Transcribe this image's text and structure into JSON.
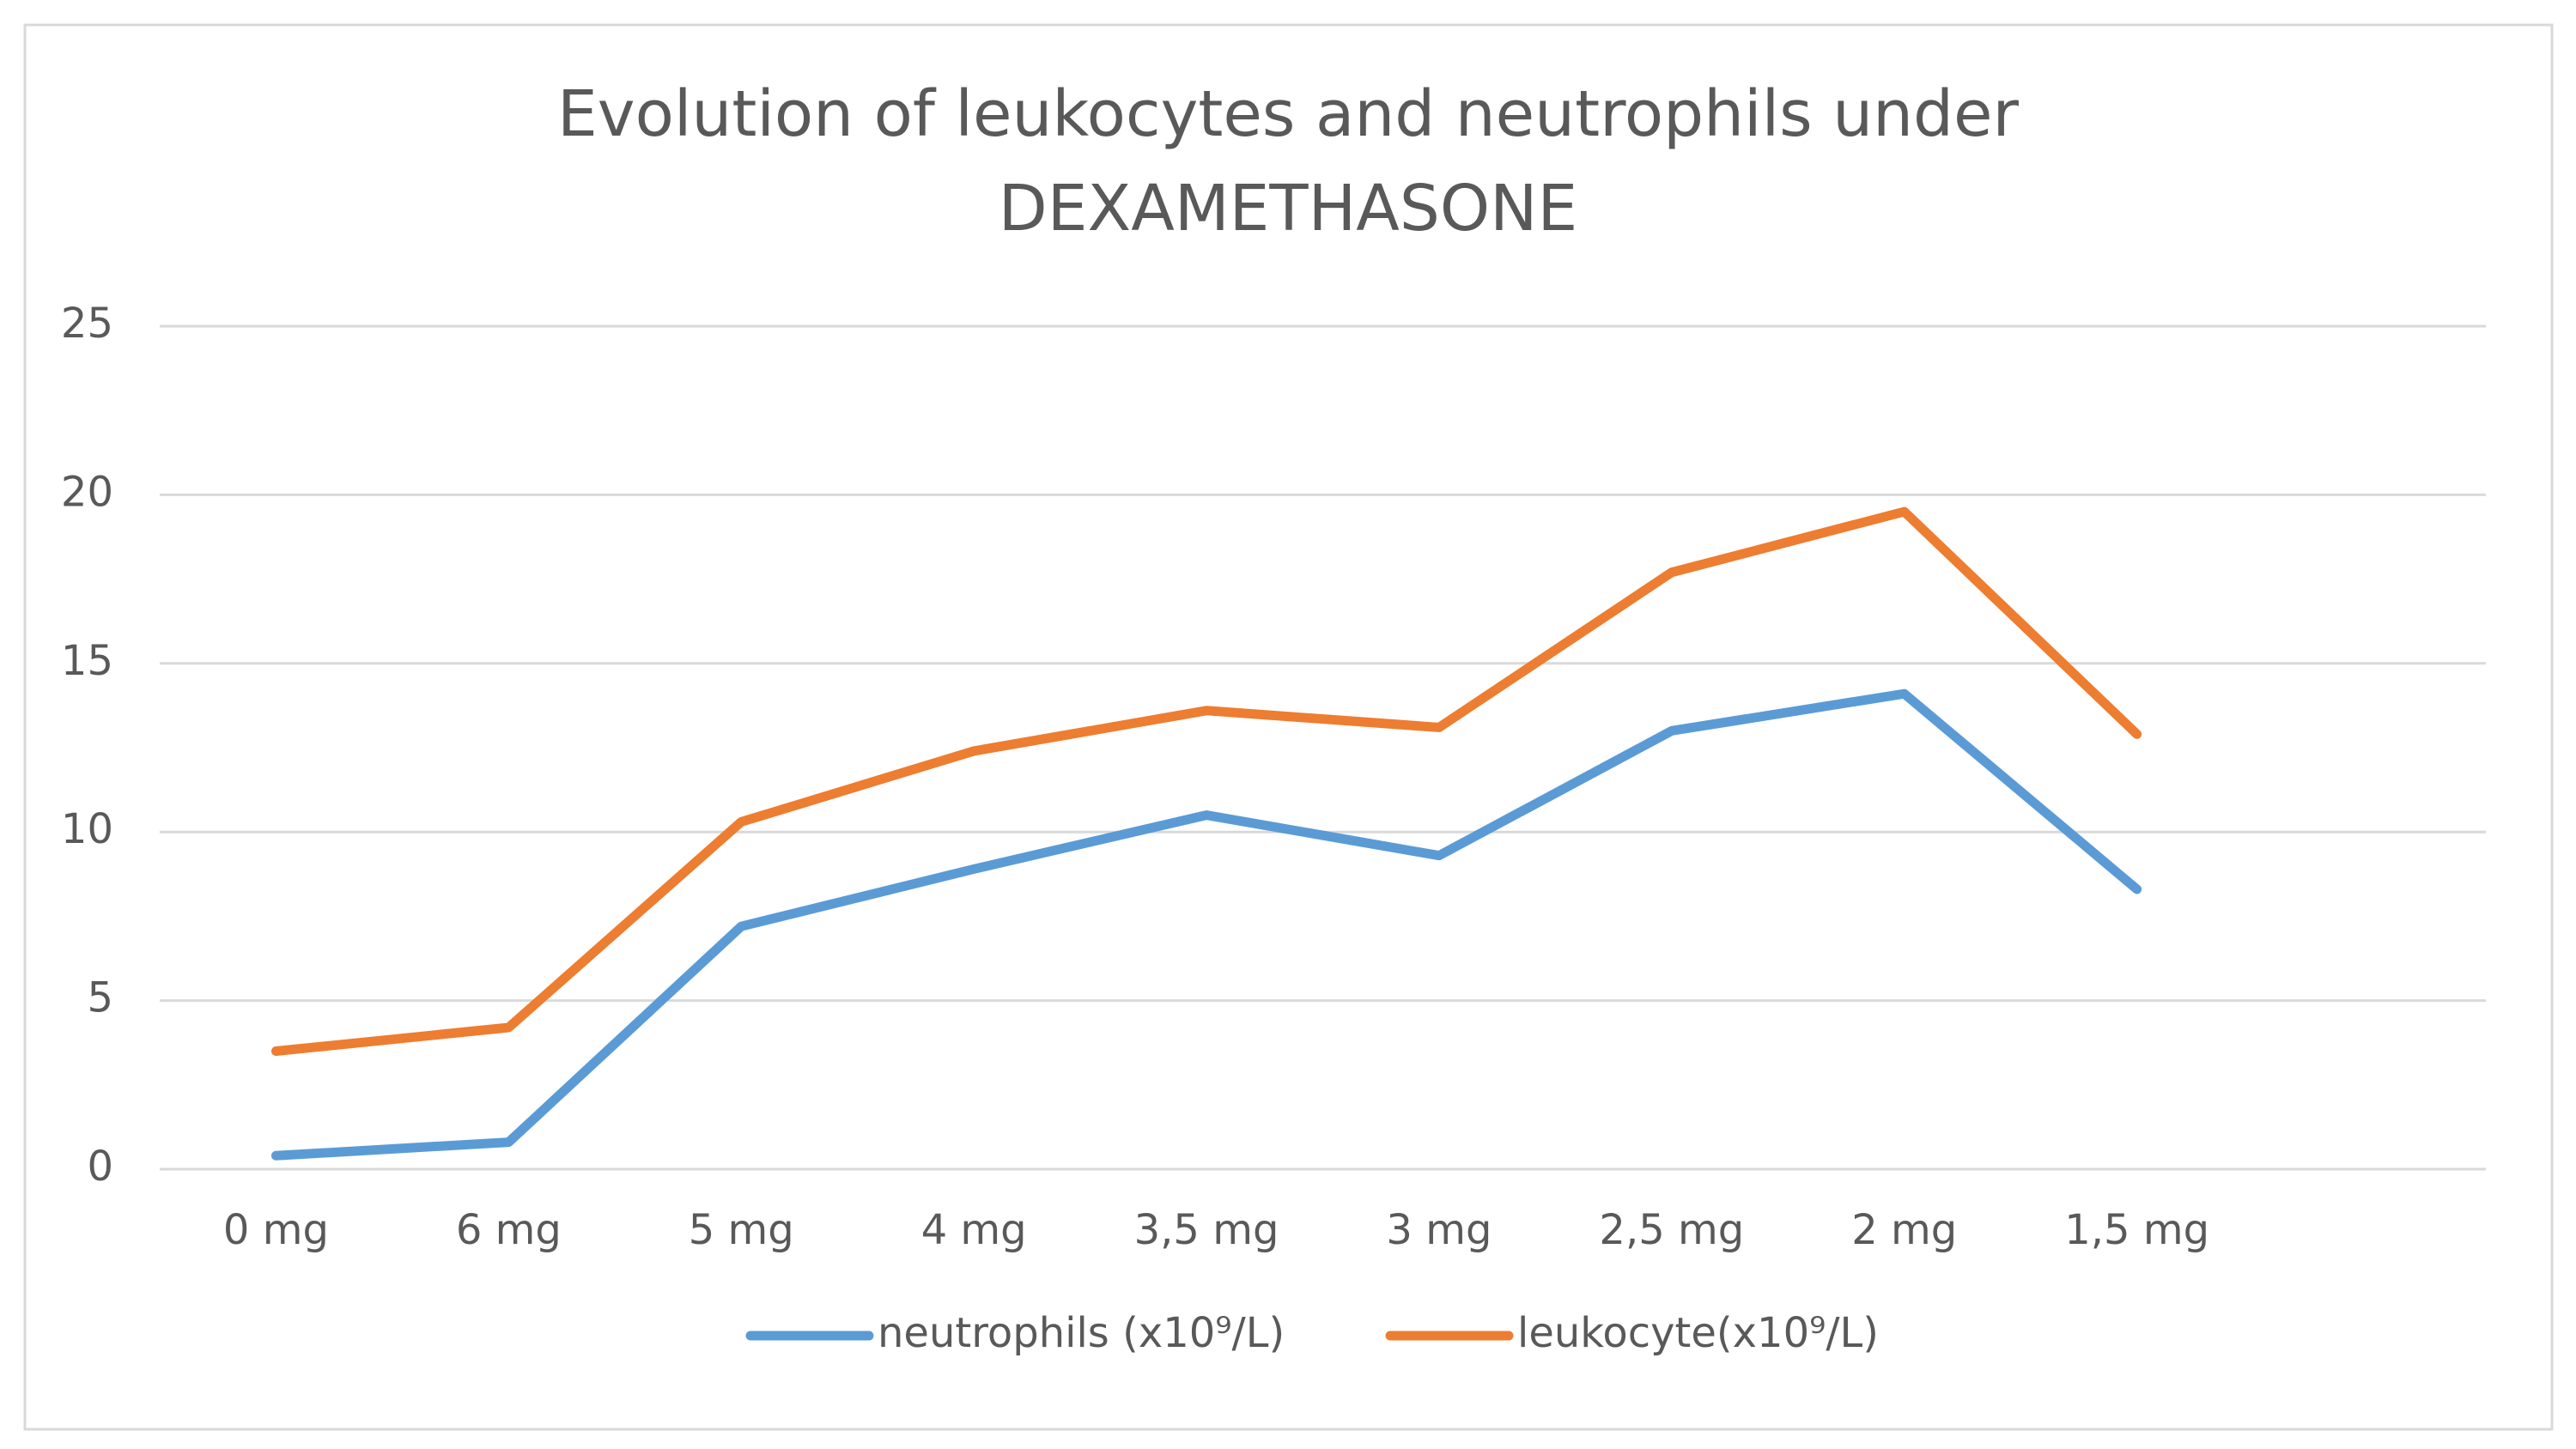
{
  "chart_data": {
    "type": "line",
    "title": "Evolution of leukocytes and neutrophils under DEXAMETHASONE",
    "categories": [
      "0 mg",
      "6 mg",
      "5 mg",
      "4 mg",
      "3,5 mg",
      "3 mg",
      "2,5 mg",
      "2 mg",
      "1,5 mg",
      null
    ],
    "series": [
      {
        "name": "neutrophils (x10⁹/L)",
        "color": "#5b9bd5",
        "values": [
          0.4,
          0.8,
          7.2,
          8.9,
          10.5,
          9.3,
          13,
          14.1,
          8.3,
          null
        ]
      },
      {
        "name": "leukocyte(x10⁹/L)",
        "color": "#ed7d31",
        "values": [
          3.5,
          4.2,
          10.3,
          12.4,
          13.6,
          13.1,
          17.7,
          19.5,
          12.9,
          null
        ]
      }
    ],
    "ylim": [
      0,
      25
    ],
    "yticks": [
      0,
      5,
      10,
      15,
      20,
      25
    ],
    "grid": true,
    "legend": "bottom"
  }
}
